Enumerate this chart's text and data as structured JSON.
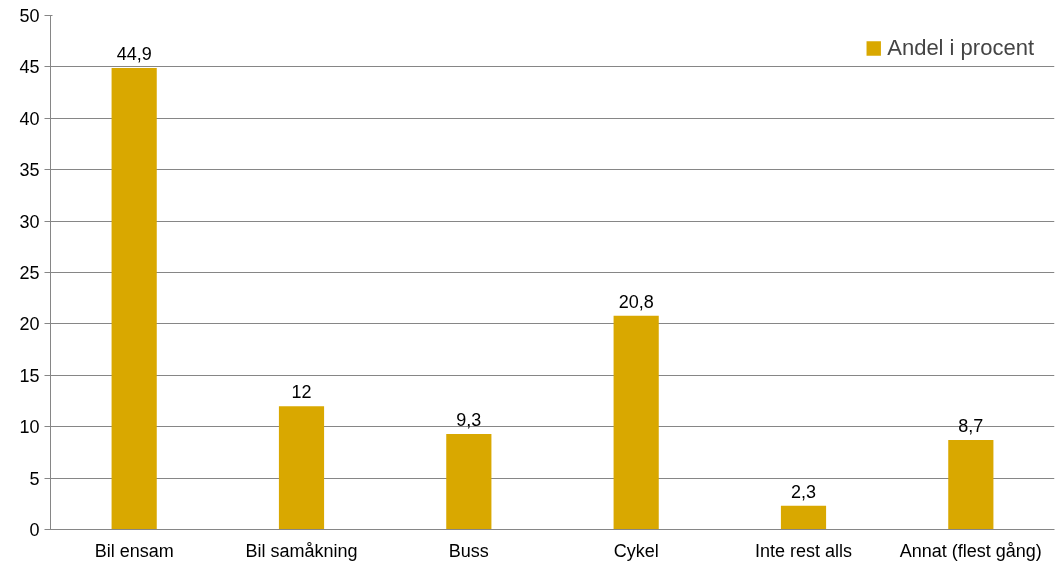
{
  "chart_data": {
    "type": "bar",
    "categories": [
      "Bil ensam",
      "Bil samåkning",
      "Buss",
      "Cykel",
      "Inte rest alls",
      "Annat (flest gång)"
    ],
    "series": [
      {
        "name": "Andel i procent",
        "color": "#d9a800",
        "values": [
          44.9,
          12,
          9.3,
          20.8,
          2.3,
          8.7
        ],
        "value_labels": [
          "44,9",
          "12",
          "9,3",
          "20,8",
          "2,3",
          "8,7"
        ]
      }
    ],
    "ylim": [
      0,
      50
    ],
    "yticks": [
      0,
      5,
      10,
      15,
      20,
      25,
      30,
      35,
      40,
      45,
      50
    ],
    "grid": "y",
    "legend": "top right"
  }
}
